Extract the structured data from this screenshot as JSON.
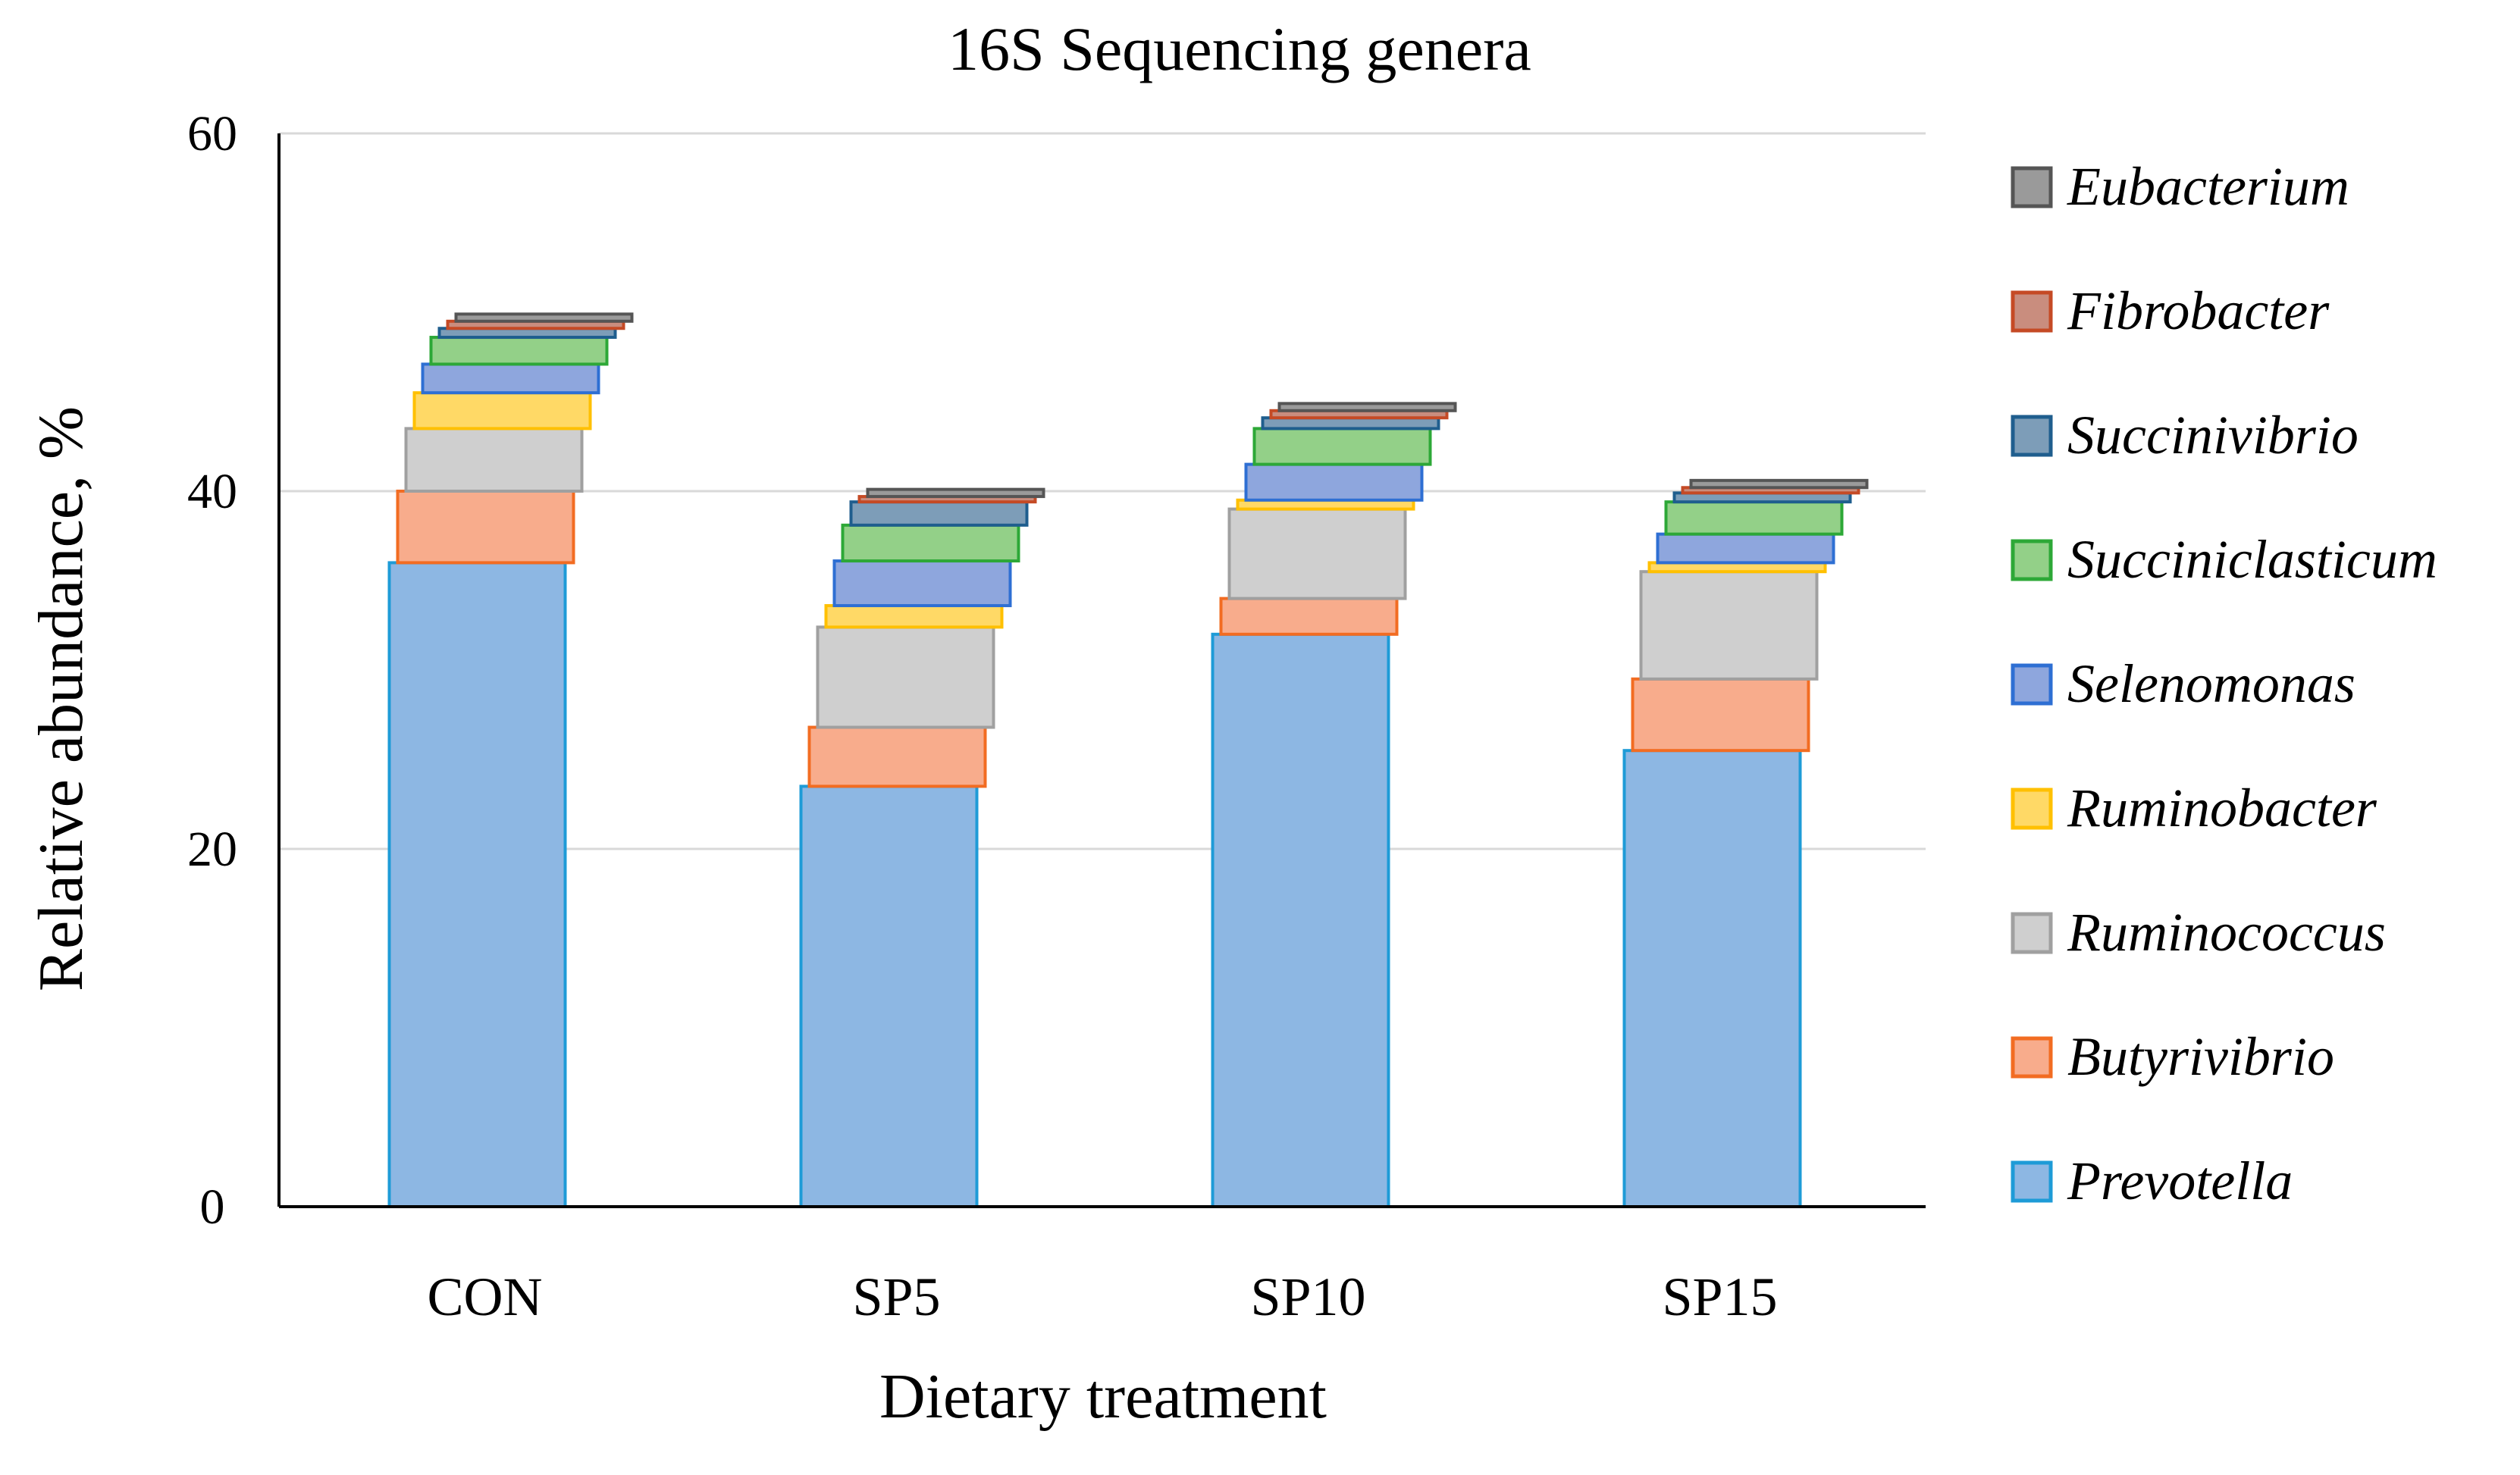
{
  "chart_data": {
    "type": "bar",
    "stacked": true,
    "title": "16S Sequencing genera",
    "xlabel": "Dietary treatment",
    "ylabel": "Relative abundance, %",
    "ylim": [
      0,
      60
    ],
    "yticks": [
      0,
      20,
      40,
      60
    ],
    "grid": true,
    "legend_position": "right",
    "categories": [
      "CON",
      "SP5",
      "SP10",
      "SP15"
    ],
    "series": [
      {
        "name": "Prevotella",
        "values": [
          36.0,
          23.5,
          32.0,
          25.5
        ],
        "fill": "#8DB7E3",
        "stroke": "#1E9BD7"
      },
      {
        "name": "Butyrivibrio",
        "values": [
          4.0,
          3.3,
          2.0,
          4.0
        ],
        "fill": "#F8AC8C",
        "stroke": "#F26C22"
      },
      {
        "name": "Ruminococcus",
        "values": [
          3.5,
          5.6,
          5.0,
          6.0
        ],
        "fill": "#CFCFCF",
        "stroke": "#A0A0A0"
      },
      {
        "name": "Ruminobacter",
        "values": [
          2.0,
          1.2,
          0.5,
          0.5
        ],
        "fill": "#FFD966",
        "stroke": "#FFC000"
      },
      {
        "name": "Selenomonas",
        "values": [
          1.6,
          2.5,
          2.0,
          1.6
        ],
        "fill": "#8EA6DD",
        "stroke": "#2E6FD3"
      },
      {
        "name": "Succiniclasticum",
        "values": [
          1.5,
          2.0,
          2.0,
          1.8
        ],
        "fill": "#93D088",
        "stroke": "#2DA837"
      },
      {
        "name": "Succinivibrio",
        "values": [
          0.5,
          1.3,
          0.6,
          0.5
        ],
        "fill": "#7D9DB8",
        "stroke": "#1F5E8E"
      },
      {
        "name": "Fibrobacter",
        "values": [
          0.4,
          0.3,
          0.4,
          0.3
        ],
        "fill": "#C98D7E",
        "stroke": "#C54A25"
      },
      {
        "name": "Eubacterium",
        "values": [
          0.4,
          0.4,
          0.4,
          0.4
        ],
        "fill": "#9A9A9A",
        "stroke": "#555555"
      }
    ]
  }
}
